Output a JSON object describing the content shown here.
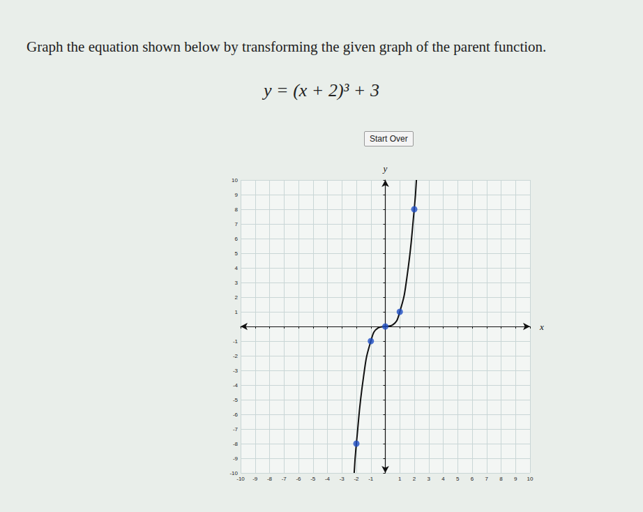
{
  "chart_data": {
    "type": "line",
    "title": "Graph the equation shown below by transforming the given graph of the parent function.",
    "subtitle": "y = (x + 2)³ + 3",
    "annotations": [
      "Start Over"
    ],
    "x_label": "x",
    "y_label": "y",
    "xlim": [
      -10,
      10
    ],
    "ylim": [
      -10,
      10
    ],
    "xticks": [
      -10,
      -9,
      -8,
      -7,
      -6,
      -5,
      -4,
      -3,
      -2,
      -1,
      1,
      2,
      3,
      4,
      5,
      6,
      7,
      8,
      9,
      10
    ],
    "yticks": [
      -10,
      -9,
      -8,
      -7,
      -6,
      -5,
      -4,
      -3,
      -2,
      -1,
      1,
      2,
      3,
      4,
      5,
      6,
      7,
      8,
      9,
      10
    ],
    "grid": true,
    "series": [
      {
        "type": "line",
        "color": "#111111",
        "line_style": "solid",
        "x": [
          -2.15,
          -2,
          -1.5,
          -1,
          -0.5,
          0,
          0.5,
          1,
          1.5,
          2,
          2.15
        ],
        "values": [
          -10,
          -8,
          -3.4,
          -1,
          -0.1,
          0,
          0.1,
          1,
          3.4,
          8,
          10
        ]
      },
      {
        "type": "scatter",
        "color": "#1f4fc4",
        "marker": "circle",
        "x": [
          -2,
          -1,
          0,
          1,
          2
        ],
        "values": [
          -8,
          -1,
          0,
          1,
          8
        ]
      }
    ]
  }
}
